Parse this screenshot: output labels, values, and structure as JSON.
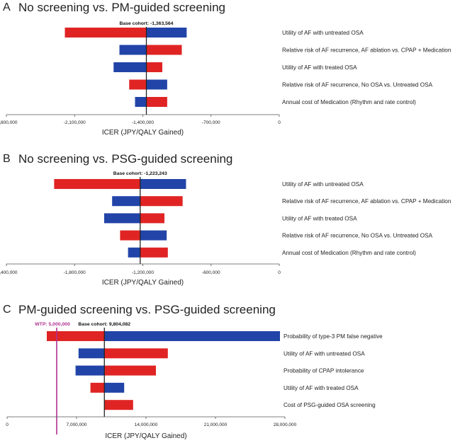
{
  "colors": {
    "low": "#e02424",
    "high": "#2244a8",
    "wtp": "#b03090",
    "axis": "#555555",
    "baseline": "#222222"
  },
  "chart_data": [
    {
      "panel": "A",
      "type": "bar",
      "orientation": "horizontal",
      "subtype": "tornado",
      "title": "No screening vs. PM-guided screening",
      "xlabel": "ICER (JPY/QALY Gained)",
      "xlim": [
        -2800000,
        0
      ],
      "ticks": [
        -2800000,
        -2100000,
        -1400000,
        -700000,
        0
      ],
      "tick_labels": [
        "-2,800,000",
        "-2,100,000",
        "-1,400,000",
        "-700,000",
        "0"
      ],
      "base_value": -1363564,
      "base_label": "Base cohort: -1,363,564",
      "parameters": [
        {
          "label": "Utility of AF with untreated OSA",
          "red": -2200000,
          "blue": -950000
        },
        {
          "label": "Relative risk of AF recurrence, AF ablation vs. CPAP + Medication",
          "red": -1000000,
          "blue": -1640000
        },
        {
          "label": "Utility of AF with treated OSA",
          "red": -1200000,
          "blue": -1700000
        },
        {
          "label": "Relative risk of AF recurrence, No OSA vs. Untreated OSA",
          "red": -1540000,
          "blue": -1150000
        },
        {
          "label": "Annual cost of Medication (Rhythm and rate control)",
          "red": -1150000,
          "blue": -1480000
        }
      ]
    },
    {
      "panel": "B",
      "type": "bar",
      "orientation": "horizontal",
      "subtype": "tornado",
      "title": "No screening vs. PSG-guided screening",
      "xlabel": "ICER (JPY/QALY Gained)",
      "xlim": [
        -2400000,
        0
      ],
      "ticks": [
        -2400000,
        -1800000,
        -1200000,
        -600000,
        0
      ],
      "tick_labels": [
        "-2,400,000",
        "-1,800,000",
        "-1,200,000",
        "-600,000",
        "0"
      ],
      "base_value": -1223243,
      "base_label": "Base cohort: -1,223,243",
      "parameters": [
        {
          "label": "Utility of AF with untreated OSA",
          "red": -1980000,
          "blue": -820000
        },
        {
          "label": "Relative risk of AF recurrence, AF ablation vs. CPAP + Medication",
          "red": -850000,
          "blue": -1470000
        },
        {
          "label": "Utility of AF with treated OSA",
          "red": -1010000,
          "blue": -1540000
        },
        {
          "label": "Relative risk of AF recurrence, No OSA vs. Untreated OSA",
          "red": -1400000,
          "blue": -990000
        },
        {
          "label": "Annual cost of Medication (Rhythm and rate control)",
          "red": -980000,
          "blue": -1330000
        }
      ]
    },
    {
      "panel": "C",
      "type": "bar",
      "orientation": "horizontal",
      "subtype": "tornado",
      "title": "PM-guided screening vs. PSG-guided screening",
      "xlabel": "ICER (JPY/QALY Gained)",
      "xlim": [
        0,
        28000000
      ],
      "ticks": [
        0,
        7000000,
        14000000,
        21000000,
        28000000
      ],
      "tick_labels": [
        "0",
        "7,000,000",
        "14,000,000",
        "21,000,000",
        "28,000,000"
      ],
      "base_value": 9804082,
      "base_label": "Base cohort: 9,804,082",
      "wtp_value": 5000000,
      "wtp_label": "WTP: 5,000,000",
      "parameters": [
        {
          "label": "Probability of type-3 PM false negative",
          "red": 4000000,
          "blue": 27500000
        },
        {
          "label": "Utility of AF with untreated OSA",
          "red": 16200000,
          "blue": 7200000
        },
        {
          "label": "Probability of CPAP intolerance",
          "red": 15000000,
          "blue": 6900000
        },
        {
          "label": "Utility of AF with treated OSA",
          "red": 8400000,
          "blue": 11800000
        },
        {
          "label": "Cost of PSG-guided OSA screening",
          "red": 12700000,
          "blue": 9804082
        }
      ]
    }
  ]
}
